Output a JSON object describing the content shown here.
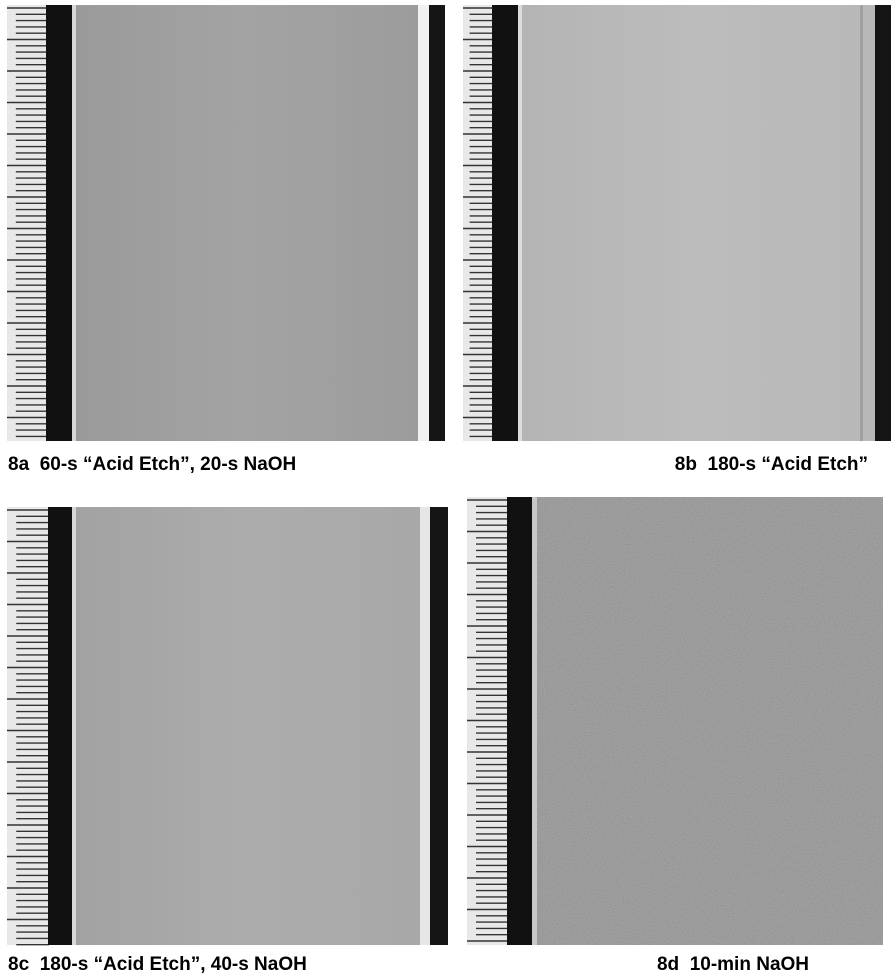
{
  "panels": [
    {
      "caption": "8a  60-s “Acid Etch”, 20-s NaOH"
    },
    {
      "caption": "8b  180-s “Acid Etch”"
    },
    {
      "caption": "8c  180-s “Acid Etch”, 40-s NaOH"
    },
    {
      "caption": "8d  10-min NaOH"
    }
  ]
}
